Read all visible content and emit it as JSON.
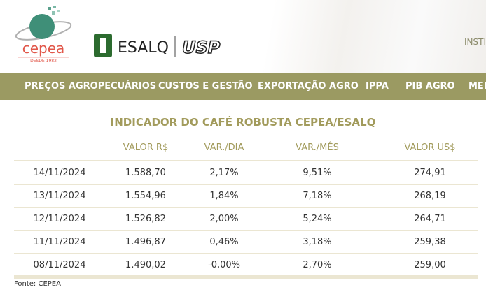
{
  "header": {
    "logo_text": "cepea",
    "logo_sub": "DESDE 1982",
    "esalq": "ESALQ",
    "usp": "USP",
    "right_link": "INSTI"
  },
  "nav": [
    "PREÇOS AGROPECUÁRIOS",
    "CUSTOS E GESTÃO",
    "EXPORTAÇÃO AGRO",
    "IPPA",
    "PIB AGRO",
    "MER"
  ],
  "table": {
    "title": "INDICADOR DO CAFÉ ROBUSTA CEPEA/ESALQ",
    "columns": [
      "",
      "VALOR R$",
      "VAR./DIA",
      "VAR./MÊS",
      "VALOR US$"
    ],
    "rows": [
      [
        "14/11/2024",
        "1.588,70",
        "2,17%",
        "9,51%",
        "274,91"
      ],
      [
        "13/11/2024",
        "1.554,96",
        "1,84%",
        "7,18%",
        "268,19"
      ],
      [
        "12/11/2024",
        "1.526,82",
        "2,00%",
        "5,24%",
        "264,71"
      ],
      [
        "11/11/2024",
        "1.496,87",
        "0,46%",
        "3,18%",
        "259,38"
      ],
      [
        "08/11/2024",
        "1.490,02",
        "-0,00%",
        "2,70%",
        "259,00"
      ]
    ],
    "source": "Fonte: CEPEA"
  }
}
